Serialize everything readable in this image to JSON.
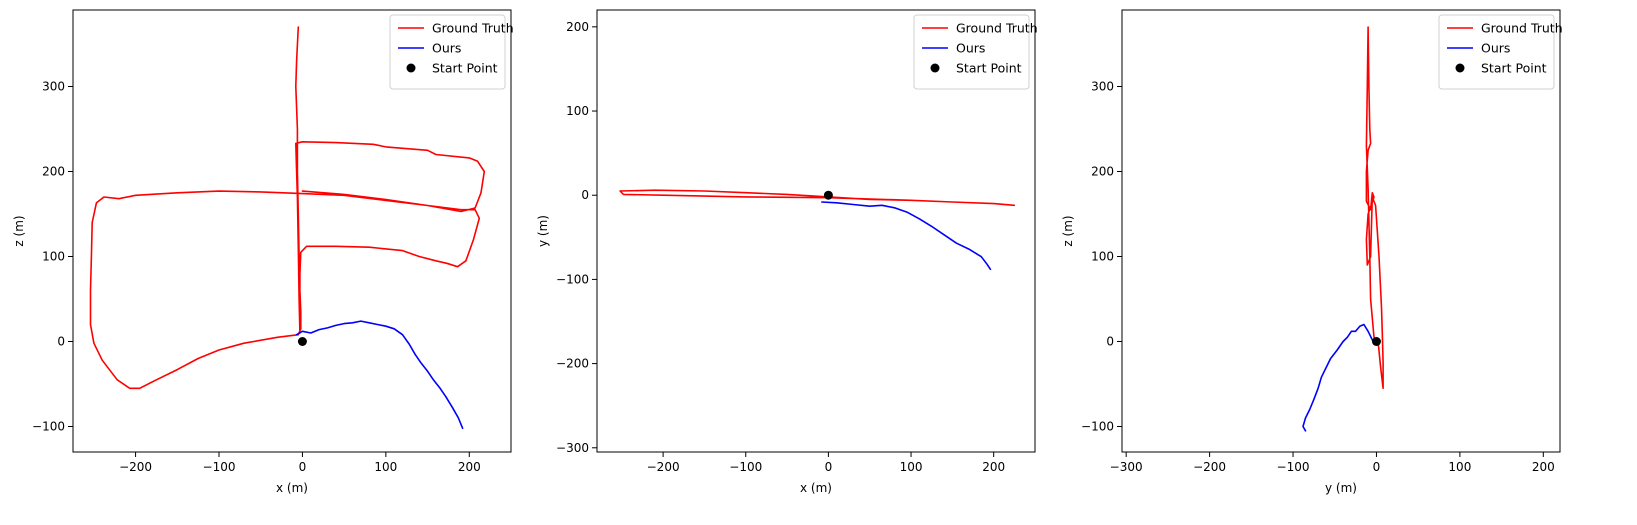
{
  "chart_data": [
    {
      "type": "line",
      "xlabel": "x (m)",
      "ylabel": "z (m)",
      "xlim": [
        -275,
        250
      ],
      "ylim": [
        -130,
        390
      ],
      "xticks": [
        -200,
        -100,
        0,
        100,
        200
      ],
      "yticks": [
        -100,
        0,
        100,
        200,
        300
      ],
      "legend": {
        "position": "top-right",
        "entries": [
          "Ground Truth",
          "Ours",
          "Start Point"
        ]
      },
      "grid": false,
      "series": [
        {
          "name": "Ground Truth",
          "kind": "line",
          "color": "#ff0000",
          "points": [
            [
              -5,
              370
            ],
            [
              -7,
              330
            ],
            [
              -8,
              300
            ],
            [
              -6,
              250
            ],
            [
              -6,
              200
            ],
            [
              -5,
              150
            ],
            [
              -4,
              100
            ],
            [
              -3,
              60
            ],
            [
              -2,
              35
            ],
            [
              -2,
              15
            ],
            [
              -5,
              8
            ],
            [
              -30,
              5
            ],
            [
              -70,
              -2
            ],
            [
              -100,
              -10
            ],
            [
              -125,
              -20
            ],
            [
              -150,
              -33
            ],
            [
              -175,
              -45
            ],
            [
              -195,
              -55
            ],
            [
              -207,
              -55
            ],
            [
              -222,
              -45
            ],
            [
              -240,
              -22
            ],
            [
              -250,
              -2
            ],
            [
              -254,
              20
            ],
            [
              -254,
              60
            ],
            [
              -253,
              100
            ],
            [
              -252,
              140
            ],
            [
              -247,
              163
            ],
            [
              -238,
              170
            ],
            [
              -220,
              168
            ],
            [
              -200,
              172
            ],
            [
              -150,
              175
            ],
            [
              -100,
              177
            ],
            [
              -50,
              176
            ],
            [
              0,
              174
            ],
            [
              50,
              172
            ],
            [
              100,
              166
            ],
            [
              150,
              160
            ],
            [
              190,
              155
            ],
            [
              207,
              155
            ],
            [
              212,
              145
            ],
            [
              205,
              120
            ],
            [
              196,
              95
            ],
            [
              186,
              88
            ],
            [
              173,
              92
            ],
            [
              160,
              95
            ],
            [
              140,
              100
            ],
            [
              120,
              107
            ],
            [
              80,
              111
            ],
            [
              40,
              112
            ],
            [
              5,
              112
            ],
            [
              -2,
              105
            ],
            [
              -3,
              80
            ],
            [
              -3,
              40
            ],
            [
              -3,
              10
            ],
            [
              -4,
              50
            ],
            [
              -5,
              110
            ],
            [
              -6,
              170
            ],
            [
              -7,
              200
            ],
            [
              -8,
              233
            ],
            [
              0,
              235
            ],
            [
              40,
              234
            ],
            [
              85,
              232
            ],
            [
              100,
              229
            ],
            [
              150,
              225
            ],
            [
              160,
              220
            ],
            [
              200,
              216
            ],
            [
              210,
              212
            ],
            [
              218,
              200
            ],
            [
              214,
              175
            ],
            [
              207,
              157
            ],
            [
              190,
              153
            ],
            [
              150,
              160
            ],
            [
              100,
              167
            ],
            [
              50,
              173
            ],
            [
              0,
              177
            ]
          ]
        },
        {
          "name": "Ours",
          "kind": "line",
          "color": "#0000ff",
          "points": [
            [
              -7,
              8
            ],
            [
              0,
              12
            ],
            [
              10,
              10
            ],
            [
              20,
              14
            ],
            [
              30,
              16
            ],
            [
              40,
              19
            ],
            [
              50,
              21
            ],
            [
              60,
              22
            ],
            [
              70,
              24
            ],
            [
              80,
              22
            ],
            [
              90,
              20
            ],
            [
              100,
              18
            ],
            [
              110,
              15
            ],
            [
              120,
              8
            ],
            [
              128,
              -3
            ],
            [
              135,
              -15
            ],
            [
              142,
              -25
            ],
            [
              150,
              -35
            ],
            [
              157,
              -45
            ],
            [
              165,
              -55
            ],
            [
              172,
              -65
            ],
            [
              180,
              -78
            ],
            [
              187,
              -90
            ],
            [
              192,
              -102
            ]
          ]
        },
        {
          "name": "Start Point",
          "kind": "marker",
          "color": "#000000",
          "points": [
            [
              0,
              0
            ]
          ]
        }
      ]
    },
    {
      "type": "line",
      "xlabel": "x (m)",
      "ylabel": "y (m)",
      "xlim": [
        -280,
        250
      ],
      "ylim": [
        -305,
        220
      ],
      "xticks": [
        -200,
        -100,
        0,
        100,
        200
      ],
      "yticks": [
        -300,
        -200,
        -100,
        0,
        100,
        200
      ],
      "legend": {
        "position": "top-right",
        "entries": [
          "Ground Truth",
          "Ours",
          "Start Point"
        ]
      },
      "grid": false,
      "series": [
        {
          "name": "Ground Truth",
          "kind": "line",
          "color": "#ff0000",
          "points": [
            [
              -252,
              5
            ],
            [
              -248,
              1
            ],
            [
              -200,
              0
            ],
            [
              -100,
              -2
            ],
            [
              0,
              -3
            ],
            [
              100,
              -6
            ],
            [
              150,
              -8
            ],
            [
              200,
              -10
            ],
            [
              225,
              -12
            ],
            [
              200,
              -10
            ],
            [
              150,
              -8
            ],
            [
              100,
              -6
            ],
            [
              50,
              -5
            ],
            [
              0,
              -2
            ],
            [
              -50,
              1
            ],
            [
              -100,
              3
            ],
            [
              -150,
              5
            ],
            [
              -210,
              6
            ],
            [
              -252,
              5
            ]
          ]
        },
        {
          "name": "Ours",
          "kind": "line",
          "color": "#0000ff",
          "points": [
            [
              -8,
              -8
            ],
            [
              10,
              -9
            ],
            [
              30,
              -11
            ],
            [
              50,
              -13
            ],
            [
              65,
              -12
            ],
            [
              80,
              -15
            ],
            [
              95,
              -20
            ],
            [
              110,
              -28
            ],
            [
              125,
              -37
            ],
            [
              140,
              -47
            ],
            [
              155,
              -57
            ],
            [
              170,
              -64
            ],
            [
              185,
              -73
            ],
            [
              192,
              -82
            ],
            [
              196,
              -88
            ]
          ]
        },
        {
          "name": "Start Point",
          "kind": "marker",
          "color": "#000000",
          "points": [
            [
              0,
              0
            ]
          ]
        }
      ]
    },
    {
      "type": "line",
      "xlabel": "y (m)",
      "ylabel": "z (m)",
      "xlim": [
        -305,
        220
      ],
      "ylim": [
        -130,
        390
      ],
      "xticks": [
        -300,
        -200,
        -100,
        0,
        100,
        200
      ],
      "yticks": [
        -100,
        0,
        100,
        200,
        300
      ],
      "legend": {
        "position": "top-right",
        "entries": [
          "Ground Truth",
          "Ours",
          "Start Point"
        ]
      },
      "grid": false,
      "series": [
        {
          "name": "Ground Truth",
          "kind": "line",
          "color": "#ff0000",
          "points": [
            [
              -10,
              370
            ],
            [
              -9,
              300
            ],
            [
              -8,
              250
            ],
            [
              -7,
              233
            ],
            [
              -10,
              225
            ],
            [
              -12,
              200
            ],
            [
              -12,
              165
            ],
            [
              -7,
              155
            ],
            [
              -5,
              175
            ],
            [
              -3,
              170
            ],
            [
              -10,
              150
            ],
            [
              -12,
              120
            ],
            [
              -11,
              90
            ],
            [
              -7,
              100
            ],
            [
              -5,
              170
            ],
            [
              -1,
              160
            ],
            [
              3,
              100
            ],
            [
              6,
              40
            ],
            [
              7,
              10
            ],
            [
              8,
              -25
            ],
            [
              8,
              -55
            ],
            [
              5,
              -30
            ],
            [
              2,
              0
            ],
            [
              -3,
              5
            ],
            [
              -7,
              50
            ],
            [
              -8,
              100
            ],
            [
              -10,
              180
            ],
            [
              -12,
              230
            ],
            [
              -11,
              300
            ],
            [
              -10,
              370
            ]
          ]
        },
        {
          "name": "Ours",
          "kind": "line",
          "color": "#0000ff",
          "points": [
            [
              -4,
              0
            ],
            [
              -10,
              12
            ],
            [
              -15,
              20
            ],
            [
              -20,
              18
            ],
            [
              -25,
              12
            ],
            [
              -30,
              12
            ],
            [
              -35,
              5
            ],
            [
              -40,
              0
            ],
            [
              -47,
              -10
            ],
            [
              -55,
              -20
            ],
            [
              -60,
              -30
            ],
            [
              -66,
              -42
            ],
            [
              -70,
              -55
            ],
            [
              -75,
              -68
            ],
            [
              -80,
              -80
            ],
            [
              -85,
              -90
            ],
            [
              -88,
              -100
            ],
            [
              -85,
              -105
            ]
          ]
        },
        {
          "name": "Start Point",
          "kind": "marker",
          "color": "#000000",
          "points": [
            [
              0,
              0
            ]
          ]
        }
      ]
    }
  ]
}
